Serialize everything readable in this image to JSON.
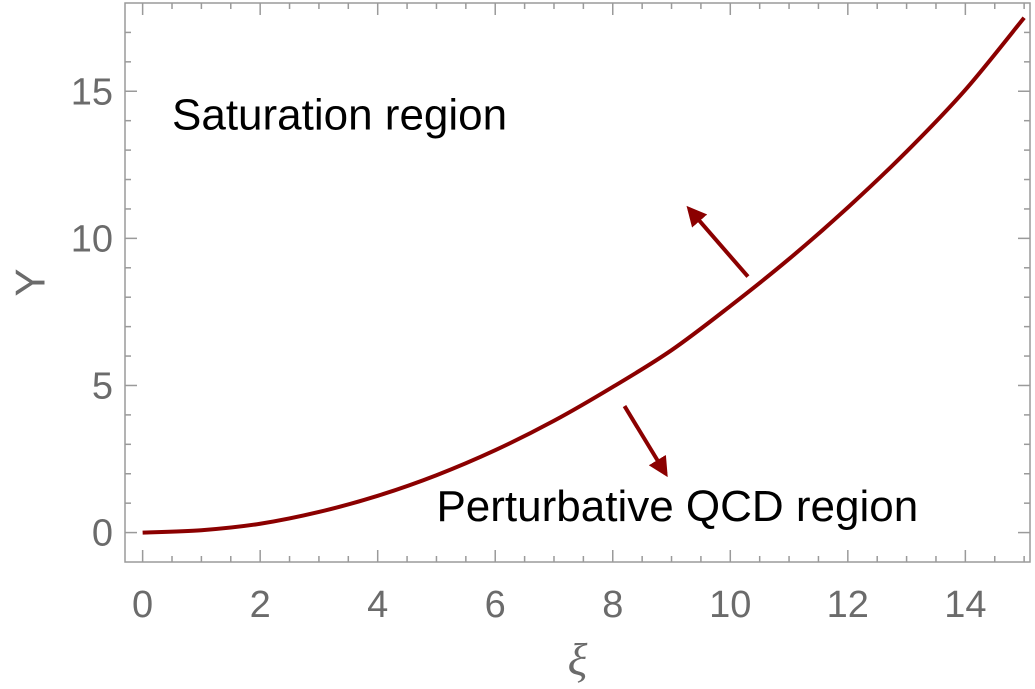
{
  "chart_data": {
    "type": "line",
    "xlabel": "ξ",
    "ylabel": "Y",
    "xlim": [
      -0.3,
      15.1
    ],
    "ylim": [
      -1.0,
      18.0
    ],
    "x_ticks": [
      0,
      2,
      4,
      6,
      8,
      10,
      12,
      14
    ],
    "y_ticks": [
      0,
      5,
      10,
      15
    ],
    "series": [
      {
        "color": "#8b0000",
        "x": [
          0,
          1,
          2,
          3,
          4,
          5,
          6,
          7,
          8,
          9,
          10,
          11,
          12,
          13,
          14,
          15
        ],
        "y": [
          0.0,
          0.08,
          0.3,
          0.7,
          1.25,
          1.95,
          2.8,
          3.8,
          4.95,
          6.2,
          7.7,
          9.3,
          11.05,
          12.95,
          15.05,
          17.5
        ]
      }
    ],
    "annotations": [
      {
        "text": "Saturation region",
        "x": 0.5,
        "y": 13.7
      },
      {
        "text": "Perturbative QCD region",
        "x": 5.0,
        "y": 0.4
      }
    ],
    "arrows": [
      {
        "from": [
          10.3,
          8.7
        ],
        "to": [
          9.3,
          11.0
        ],
        "color": "#8b0000"
      },
      {
        "from": [
          8.2,
          4.3
        ],
        "to": [
          8.9,
          2.0
        ],
        "color": "#8b0000"
      }
    ],
    "grid": false,
    "frame": true
  }
}
